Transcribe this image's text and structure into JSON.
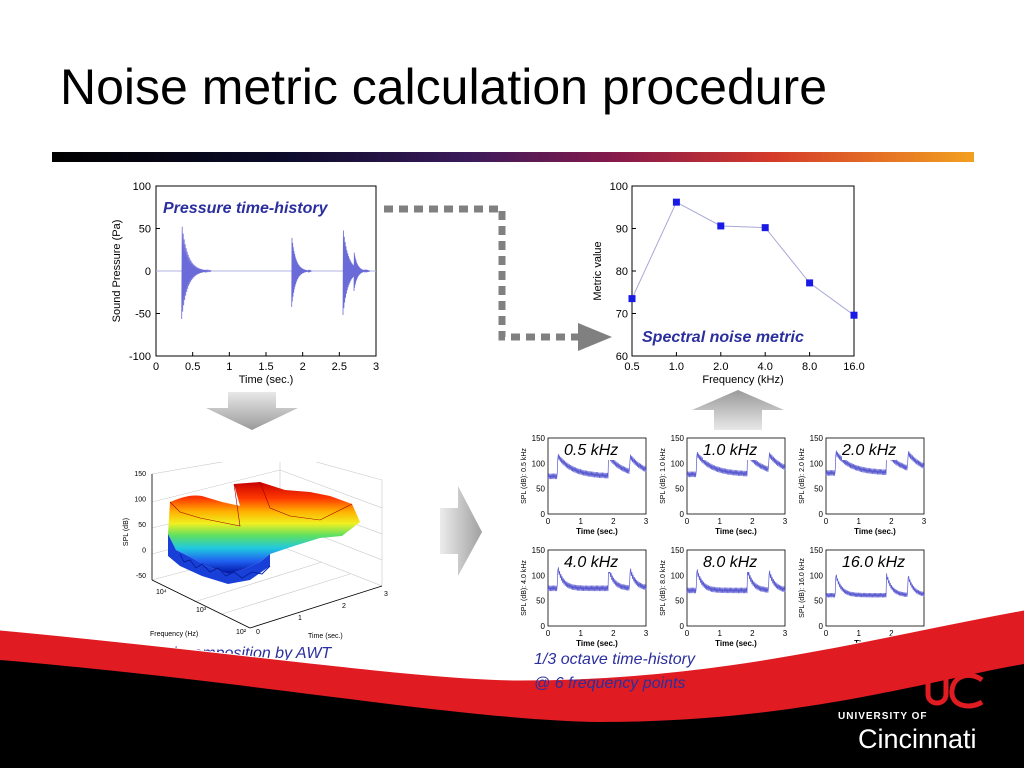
{
  "slide": {
    "title": "Noise metric calculation procedure"
  },
  "pressure_plot": {
    "caption": "Pressure time-history",
    "ylabel": "Sound Pressure (Pa)",
    "xlabel": "Time (sec.)",
    "yticks": [
      "100",
      "50",
      "0",
      "-50",
      "-100"
    ],
    "xticks": [
      "0",
      "0.5",
      "1",
      "1.5",
      "2",
      "2.5",
      "3"
    ]
  },
  "chart_data": [
    {
      "type": "line",
      "title": "Spectral noise metric",
      "xlabel": "Frequency (kHz)",
      "ylabel": "Metric value",
      "categories": [
        "0.5",
        "1.0",
        "2.0",
        "4.0",
        "8.0",
        "16.0"
      ],
      "values": [
        73.5,
        96.2,
        90.6,
        90.2,
        77.2,
        69.6
      ],
      "ylim": [
        60,
        100
      ],
      "yticks": [
        "100",
        "90",
        "80",
        "70",
        "60"
      ],
      "grid": false,
      "color": "#1a1ae6"
    }
  ],
  "tf_plot": {
    "caption": "T-F decomposition by AWT",
    "zlabel": "SPL (dB)",
    "zticks": [
      "150",
      "100",
      "50",
      "0",
      "-50"
    ],
    "freq_label": "Frequency (Hz)",
    "time_label": "Time (sec.)",
    "freq_ticks": [
      "10⁴",
      "10³",
      "10²"
    ],
    "time_ticks": [
      "0",
      "1",
      "2",
      "3"
    ]
  },
  "octave_plots": {
    "caption_line1": "1/3 octave time-history",
    "caption_line2": "@ 6 frequency points",
    "yticks": [
      "150",
      "100",
      "50",
      "0"
    ],
    "xticks": [
      "0",
      "1",
      "2",
      "3"
    ],
    "xlabel": "Time (sec.)",
    "bands": [
      {
        "label": "0.5 kHz",
        "ylabel": "SPL (dB): 0.5 kHz"
      },
      {
        "label": "1.0 kHz",
        "ylabel": "SPL (dB): 1.0 kHz"
      },
      {
        "label": "2.0 kHz",
        "ylabel": "SPL (dB): 2.0 kHz"
      },
      {
        "label": "4.0 kHz",
        "ylabel": "SPL (dB): 4.0 kHz"
      },
      {
        "label": "8.0 kHz",
        "ylabel": "SPL (dB): 8.0 kHz"
      },
      {
        "label": "16.0 kHz",
        "ylabel": "SPL (dB): 16.0 kHz"
      }
    ]
  },
  "logo": {
    "line1": "UNIVERSITY OF",
    "line2": "Cincinnati"
  },
  "colors": {
    "caption_blue": "#2b2f9e",
    "footer_red": "#e01b22",
    "signal_blue": "#5a5ad0"
  }
}
